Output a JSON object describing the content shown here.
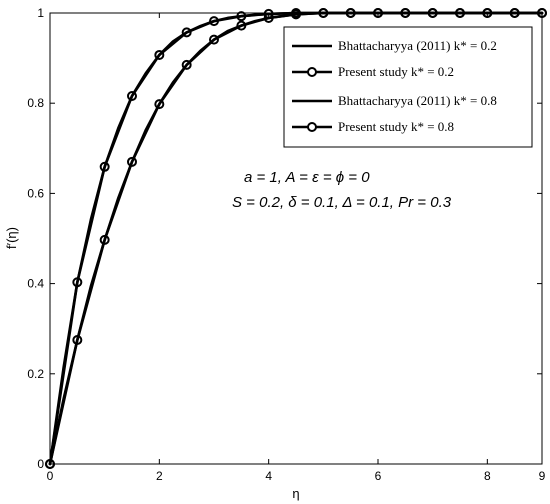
{
  "chart_data": {
    "type": "line",
    "xlabel": "η",
    "ylabel": "f′(η)",
    "xlim": [
      0,
      9
    ],
    "ylim": [
      0,
      1
    ],
    "xticks": [
      0,
      2,
      4,
      6,
      8,
      9
    ],
    "yticks": [
      0,
      0.2,
      0.4,
      0.6,
      0.8,
      1
    ],
    "grid": false,
    "legend_position": "top-right",
    "legend": [
      {
        "label": "Bhattacharyya (2011) k* = 0.2",
        "style": "solid line"
      },
      {
        "label": "Present study k* = 0.2",
        "style": "line with circle markers"
      },
      {
        "label": "Bhattacharyya (2011) k* = 0.8",
        "style": "solid line"
      },
      {
        "label": "Present study k* = 0.8",
        "style": "line with circle markers"
      }
    ],
    "annotations": [
      "a = 1,  A = ε =  ϕ = 0",
      "S = 0.2, δ = 0.1, Δ = 0.1, Pr = 0.3"
    ],
    "series": [
      {
        "name": "Bhattacharyya (2011) k* = 0.2",
        "marker": false,
        "x": [
          0,
          0.25,
          0.5,
          0.75,
          1,
          1.25,
          1.5,
          1.75,
          2,
          2.25,
          2.5,
          2.75,
          3,
          3.25,
          3.5,
          3.75,
          4,
          4.5,
          5,
          6,
          7,
          8,
          9
        ],
        "y": [
          0,
          0.215,
          0.403,
          0.543,
          0.659,
          0.745,
          0.816,
          0.866,
          0.907,
          0.937,
          0.957,
          0.971,
          0.982,
          0.989,
          0.993,
          0.996,
          0.998,
          1,
          1,
          1,
          1,
          1,
          1
        ]
      },
      {
        "name": "Present study k* = 0.2",
        "marker": true,
        "x": [
          0,
          0.5,
          1,
          1.5,
          2,
          2.5,
          3,
          3.5,
          4,
          4.5,
          5,
          5.5,
          6,
          6.5,
          7,
          7.5,
          8,
          8.5,
          9
        ],
        "y": [
          0,
          0.403,
          0.659,
          0.816,
          0.907,
          0.957,
          0.982,
          0.993,
          0.998,
          1,
          1,
          1,
          1,
          1,
          1,
          1,
          1,
          1,
          1
        ]
      },
      {
        "name": "Bhattacharyya (2011) k* = 0.8",
        "marker": false,
        "x": [
          0,
          0.25,
          0.5,
          0.75,
          1,
          1.25,
          1.5,
          1.75,
          2,
          2.25,
          2.5,
          2.75,
          3,
          3.25,
          3.5,
          3.75,
          4,
          4.5,
          5,
          6,
          7,
          8,
          9
        ],
        "y": [
          0,
          0.145,
          0.275,
          0.395,
          0.497,
          0.59,
          0.67,
          0.74,
          0.798,
          0.846,
          0.885,
          0.916,
          0.941,
          0.96,
          0.972,
          0.982,
          0.989,
          0.997,
          1,
          1,
          1,
          1,
          1
        ]
      },
      {
        "name": "Present study k* = 0.8",
        "marker": true,
        "x": [
          0,
          0.5,
          1,
          1.5,
          2,
          2.5,
          3,
          3.5,
          4,
          4.5,
          5,
          5.5,
          6,
          6.5,
          7,
          7.5,
          8,
          8.5,
          9
        ],
        "y": [
          0,
          0.275,
          0.497,
          0.67,
          0.798,
          0.885,
          0.941,
          0.972,
          0.989,
          0.997,
          1,
          1,
          1,
          1,
          1,
          1,
          1,
          1,
          1
        ]
      }
    ]
  }
}
